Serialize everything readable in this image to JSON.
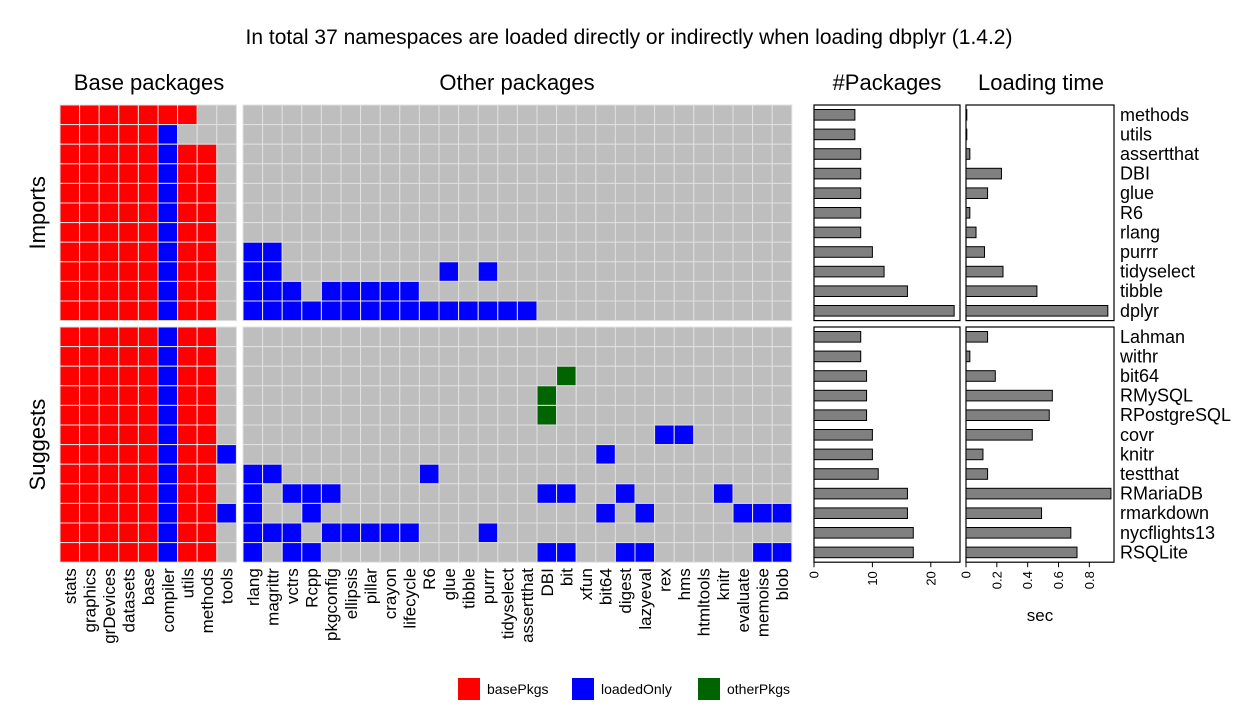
{
  "colors": {
    "basePkgs": "#FF0000",
    "loadedOnly": "#0000FF",
    "otherPkgs": "#006400",
    "empty": "#BEBEBE",
    "bar": "#808080",
    "grid": "#E0E0E0"
  },
  "chart_data": {
    "type": "heatmap",
    "title": "In total 37 namespaces are loaded directly or indirectly when loading dbplyr (1.4.2)",
    "panels": {
      "base": "Base packages",
      "other": "Other packages",
      "count": "#Packages",
      "time": "Loading time"
    },
    "groups": [
      {
        "name": "Imports",
        "rows": [
          "methods",
          "utils",
          "assertthat",
          "DBI",
          "glue",
          "R6",
          "rlang",
          "purrr",
          "tidyselect",
          "tibble",
          "dplyr"
        ]
      },
      {
        "name": "Suggests",
        "rows": [
          "Lahman",
          "withr",
          "bit64",
          "RMySQL",
          "RPostgreSQL",
          "covr",
          "knitr",
          "testthat",
          "RMariaDB",
          "rmarkdown",
          "nycflights13",
          "RSQLite"
        ]
      }
    ],
    "base_columns": [
      "stats",
      "graphics",
      "grDevices",
      "datasets",
      "base",
      "compiler",
      "utils",
      "methods",
      "tools"
    ],
    "other_columns": [
      "rlang",
      "magrittr",
      "vctrs",
      "Rcpp",
      "pkgconfig",
      "ellipsis",
      "pillar",
      "crayon",
      "lifecycle",
      "R6",
      "glue",
      "tibble",
      "purrr",
      "tidyselect",
      "assertthat",
      "DBI",
      "bit",
      "xfun",
      "bit64",
      "digest",
      "lazyeval",
      "rex",
      "hms",
      "htmltools",
      "knitr",
      "evaluate",
      "memoise",
      "blob"
    ],
    "cells_base": {
      "methods": "BBBBBBB  ",
      "utils": "BBBBBL.  ",
      "assertthat": "BBBBBLBB ",
      "DBI": "BBBBBLBB ",
      "glue": "BBBBBLBB ",
      "R6": "BBBBBLBB ",
      "rlang": "BBBBBLBB ",
      "purrr": "BBBBBLBB ",
      "tidyselect": "BBBBBLBB ",
      "tibble": "BBBBBLBB ",
      "dplyr": "BBBBBLBB ",
      "Lahman": "BBBBBLBB ",
      "withr": "BBBBBLBB ",
      "bit64": "BBBBBLBB ",
      "RMySQL": "BBBBBLBB ",
      "RPostgreSQL": "BBBBBLBB ",
      "covr": "BBBBBLBB ",
      "knitr": "BBBBBLBBL",
      "testthat": "BBBBBLBB ",
      "RMariaDB": "BBBBBLBB ",
      "rmarkdown": "BBBBBLBBL",
      "nycflights13": "BBBBBLBB ",
      "RSQLite": "BBBBBLBB "
    },
    "cells_other": {
      "methods": "                            ",
      "utils": "                            ",
      "assertthat": "                            ",
      "DBI": "                            ",
      "glue": "                            ",
      "R6": "                            ",
      "rlang": "                            ",
      "purrr": "LL                          ",
      "tidyselect": "LL        L L               ",
      "tibble": "LLL LLLLL                   ",
      "dplyr": "LLLLLLLLLLLLLLL             ",
      "Lahman": "                            ",
      "withr": "                            ",
      "bit64": "                G           ",
      "RMySQL": "               G            ",
      "RPostgreSQL": "               G            ",
      "covr": "                     LL     ",
      "knitr": "                  L         ",
      "testthat": "LL       L                  ",
      "RMariaDB": "L LLL          LL  L    L   ",
      "rmarkdown": "L  L              L L    LLL",
      "nycflights13": "LLL LLLLL   L               ",
      "RSQLite": "L LL           LL  LL     LL"
    },
    "n_packages": {
      "methods": 7,
      "utils": 7,
      "assertthat": 8,
      "DBI": 8,
      "glue": 8,
      "R6": 8,
      "rlang": 8,
      "purrr": 10,
      "tidyselect": 12,
      "tibble": 16,
      "dplyr": 24,
      "Lahman": 8,
      "withr": 8,
      "bit64": 9,
      "RMySQL": 9,
      "RPostgreSQL": 9,
      "covr": 10,
      "knitr": 10,
      "testthat": 11,
      "RMariaDB": 16,
      "rmarkdown": 16,
      "nycflights13": 17,
      "RSQLite": 17
    },
    "loading_time_sec": {
      "methods": 0.0,
      "utils": 0.005,
      "assertthat": 0.025,
      "DBI": 0.23,
      "glue": 0.14,
      "R6": 0.025,
      "rlang": 0.065,
      "purrr": 0.12,
      "tidyselect": 0.24,
      "tibble": 0.46,
      "dplyr": 0.92,
      "Lahman": 0.14,
      "withr": 0.025,
      "bit64": 0.19,
      "RMySQL": 0.56,
      "RPostgreSQL": 0.54,
      "covr": 0.43,
      "knitr": 0.11,
      "testthat": 0.14,
      "RMariaDB": 0.94,
      "rmarkdown": 0.49,
      "nycflights13": 0.68,
      "RSQLite": 0.72
    },
    "count_axis": {
      "ticks": [
        "0",
        "10",
        "20"
      ],
      "values": [
        0,
        10,
        20
      ],
      "xlim": [
        0,
        25
      ]
    },
    "time_axis": {
      "ticks": [
        "0",
        "0.2",
        "0.4",
        "0.6",
        "0.8"
      ],
      "values": [
        0,
        0.2,
        0.4,
        0.6,
        0.8
      ],
      "xlim": [
        0,
        0.96
      ],
      "xlabel": "sec"
    },
    "legend": [
      {
        "key": "basePkgs",
        "label": "basePkgs"
      },
      {
        "key": "loadedOnly",
        "label": "loadedOnly"
      },
      {
        "key": "otherPkgs",
        "label": "otherPkgs"
      }
    ],
    "legend_position": "bottom"
  }
}
